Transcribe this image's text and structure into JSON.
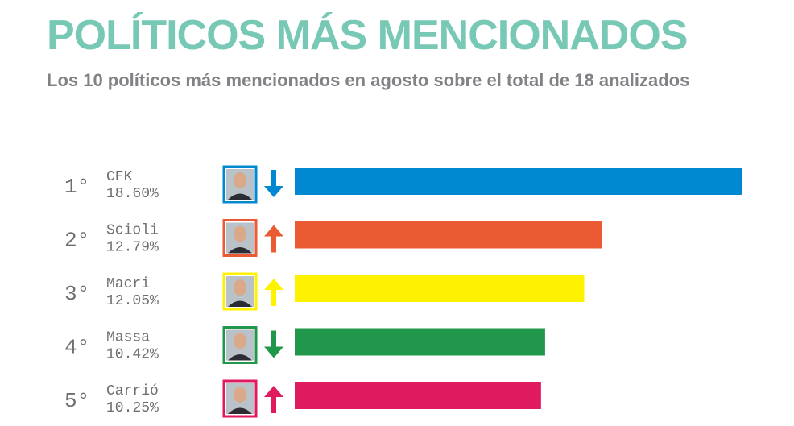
{
  "header": {
    "title": "POLÍTICOS MÁS MENCIONADOS",
    "subtitle": "Los 10 políticos más mencionados en agosto sobre el total de 18 analizados"
  },
  "colors": {
    "title": "#77c8b5",
    "subtitle": "#808285",
    "label_text": "#6d6e71"
  },
  "chart_data": {
    "type": "bar",
    "orientation": "horizontal",
    "xlim": [
      0,
      18.6
    ],
    "categories": [
      "CFK",
      "Scioli",
      "Macri",
      "Massa",
      "Carrió"
    ],
    "ranks": [
      "1°",
      "2°",
      "3°",
      "4°",
      "5°"
    ],
    "values": [
      18.6,
      12.79,
      12.05,
      10.42,
      10.25
    ],
    "value_labels": [
      "18.60%",
      "12.79%",
      "12.05%",
      "10.42%",
      "10.25%"
    ],
    "trend": [
      "down",
      "up",
      "up",
      "down",
      "up"
    ],
    "colors": [
      "#0088d1",
      "#ea5a33",
      "#fff200",
      "#20974a",
      "#e01a5e"
    ],
    "avatar_icons": [
      "cfk-portrait-icon",
      "scioli-portrait-icon",
      "macri-portrait-icon",
      "massa-portrait-icon",
      "carrio-portrait-icon"
    ]
  }
}
